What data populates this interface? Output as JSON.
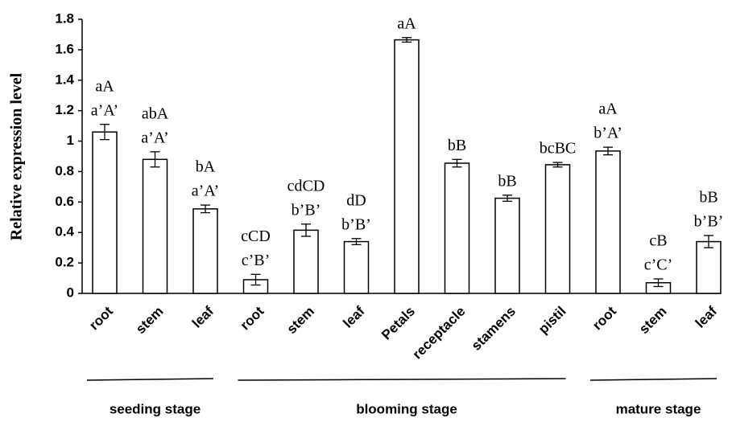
{
  "chart_data": {
    "type": "bar",
    "y_label": "Relative expression level",
    "bar_color": "#ffffff",
    "ylim": [
      0,
      1.8
    ],
    "yticks": [
      0,
      0.2,
      0.4,
      0.6,
      0.8,
      1,
      1.2,
      1.4,
      1.6,
      1.8
    ],
    "groups": [
      {
        "label": "seeding stage",
        "categories": [
          "root",
          "stem",
          "leaf"
        ],
        "values": [
          1.06,
          0.88,
          0.555
        ],
        "errors": [
          0.05,
          0.05,
          0.025
        ],
        "annotations": [
          [
            "aA",
            "a’A’"
          ],
          [
            "abA",
            "a’A’"
          ],
          [
            "bA",
            "a’A’"
          ]
        ]
      },
      {
        "label": "blooming stage",
        "categories": [
          "root",
          "stem",
          "leaf",
          "Petals",
          "receptacle",
          "stamens",
          "pistil"
        ],
        "values": [
          0.09,
          0.415,
          0.34,
          1.665,
          0.855,
          0.625,
          0.845
        ],
        "errors": [
          0.035,
          0.04,
          0.02,
          0.015,
          0.025,
          0.02,
          0.015
        ],
        "annotations": [
          [
            "cCD",
            "c’B’"
          ],
          [
            "cdCD",
            "b’B’"
          ],
          [
            "dD",
            "b’B’"
          ],
          [
            "aA"
          ],
          [
            "bB"
          ],
          [
            "bB"
          ],
          [
            "bcBC"
          ]
        ]
      },
      {
        "label": "mature stage",
        "categories": [
          "root",
          "stem",
          "leaf"
        ],
        "values": [
          0.935,
          0.07,
          0.34
        ],
        "errors": [
          0.025,
          0.025,
          0.04
        ],
        "annotations": [
          [
            "aA",
            "b’A’"
          ],
          [
            "cB",
            "c’C’"
          ],
          [
            "bB",
            "b’B’"
          ]
        ]
      }
    ]
  }
}
